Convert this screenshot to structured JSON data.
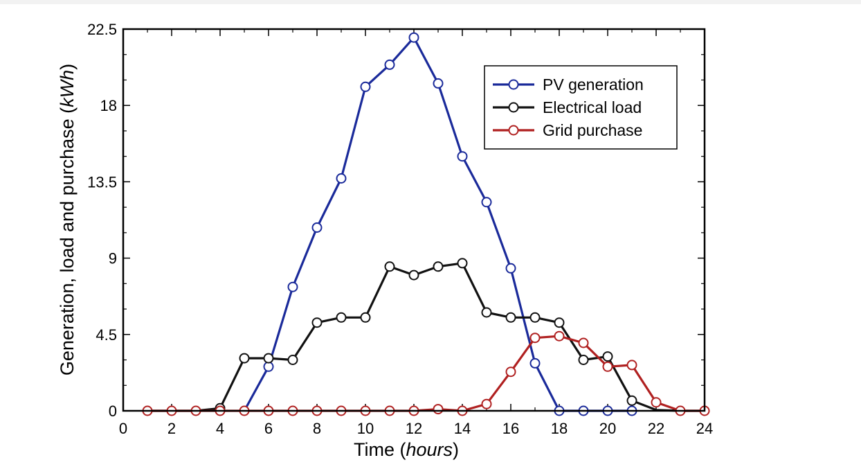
{
  "chart_data": {
    "type": "line",
    "title": "",
    "xlabel": {
      "main": "Time (",
      "italic": "hours",
      "end": ")"
    },
    "ylabel": {
      "main": "Generation, load and purchase (",
      "italic": "kWh",
      "end": ")"
    },
    "xlim": [
      0,
      24
    ],
    "ylim": [
      0,
      22.5
    ],
    "xticks": [
      0,
      2,
      4,
      6,
      8,
      10,
      12,
      14,
      16,
      18,
      20,
      22,
      24
    ],
    "yticks": [
      0,
      4.5,
      9,
      13.5,
      18,
      22.5
    ],
    "xtick_labels": [
      "0",
      "2",
      "4",
      "6",
      "8",
      "10",
      "12",
      "14",
      "16",
      "18",
      "20",
      "22",
      "24"
    ],
    "ytick_labels": [
      "0",
      "4.5",
      "9",
      "13.5",
      "18",
      "22.5"
    ],
    "grid": false,
    "legend_position": "top-right",
    "series": [
      {
        "name": "PV generation",
        "color": "#1a2a9a",
        "points": [
          [
            5,
            0
          ],
          [
            6,
            2.6
          ],
          [
            7,
            7.3
          ],
          [
            8,
            10.8
          ],
          [
            9,
            13.7
          ],
          [
            10,
            19.1
          ],
          [
            11,
            20.4
          ],
          [
            12,
            22.0
          ],
          [
            13,
            19.3
          ],
          [
            14,
            15.0
          ],
          [
            15,
            12.3
          ],
          [
            16,
            8.4
          ],
          [
            17,
            2.8
          ],
          [
            18,
            0
          ],
          [
            19,
            0
          ],
          [
            20,
            0
          ],
          [
            21,
            0
          ]
        ],
        "markers": [
          6,
          7,
          8,
          9,
          10,
          11,
          12,
          13,
          14,
          15,
          16,
          17,
          18,
          19,
          20,
          21
        ]
      },
      {
        "name": "Electrical load",
        "color": "#111111",
        "points": [
          [
            1,
            0
          ],
          [
            2,
            0
          ],
          [
            3,
            0
          ],
          [
            4,
            0.15
          ],
          [
            5,
            3.1
          ],
          [
            6,
            3.1
          ],
          [
            7,
            3.0
          ],
          [
            8,
            5.2
          ],
          [
            9,
            5.5
          ],
          [
            10,
            5.5
          ],
          [
            11,
            8.5
          ],
          [
            12,
            8.0
          ],
          [
            13,
            8.5
          ],
          [
            14,
            8.7
          ],
          [
            15,
            5.8
          ],
          [
            16,
            5.5
          ],
          [
            17,
            5.5
          ],
          [
            18,
            5.2
          ],
          [
            19,
            3.0
          ],
          [
            20,
            3.2
          ],
          [
            21,
            0.6
          ],
          [
            22,
            0.05
          ],
          [
            23,
            0
          ],
          [
            24,
            0
          ]
        ],
        "markers": [
          4,
          5,
          6,
          7,
          8,
          9,
          10,
          11,
          12,
          13,
          14,
          15,
          16,
          17,
          18,
          19,
          20,
          21
        ]
      },
      {
        "name": "Grid purchase",
        "color": "#b02020",
        "points": [
          [
            1,
            0
          ],
          [
            2,
            0
          ],
          [
            3,
            0
          ],
          [
            4,
            0
          ],
          [
            5,
            0
          ],
          [
            6,
            0
          ],
          [
            7,
            0
          ],
          [
            8,
            0
          ],
          [
            9,
            0
          ],
          [
            10,
            0
          ],
          [
            11,
            0
          ],
          [
            12,
            0
          ],
          [
            13,
            0.1
          ],
          [
            14,
            0
          ],
          [
            15,
            0.4
          ],
          [
            16,
            2.3
          ],
          [
            17,
            4.3
          ],
          [
            18,
            4.4
          ],
          [
            19,
            4.0
          ],
          [
            20,
            2.6
          ],
          [
            21,
            2.7
          ],
          [
            22,
            0.5
          ],
          [
            23,
            0
          ],
          [
            24,
            0
          ]
        ],
        "markers": [
          1,
          2,
          3,
          4,
          5,
          6,
          7,
          8,
          9,
          10,
          11,
          12,
          13,
          14,
          15,
          16,
          17,
          18,
          19,
          20,
          21,
          22,
          23,
          24
        ]
      }
    ]
  }
}
